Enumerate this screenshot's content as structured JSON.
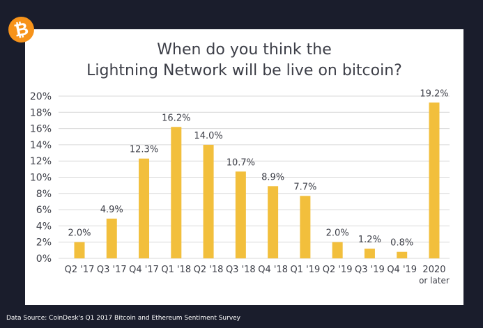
{
  "brand": {
    "logo_glyph": "₿",
    "logo_color": "#f7931a"
  },
  "colors": {
    "background": "#1a1d2c",
    "card": "#ffffff",
    "bar": "#f2bf3c",
    "text": "#3c3e47",
    "grid": "#d9d9d9"
  },
  "source_text": "Data Source: CoinDesk's Q1 2017 Bitcoin and Ethereum Sentiment Survey",
  "chart_data": {
    "type": "bar",
    "title": "When do you think the Lightning Network will be live on bitcoin?",
    "title_lines": [
      "When do you think the",
      "Lightning Network will be live on bitcoin?"
    ],
    "xlabel": "",
    "ylabel": "",
    "ylim": [
      0,
      20
    ],
    "yticks": [
      0,
      2,
      4,
      6,
      8,
      10,
      12,
      14,
      16,
      18,
      20
    ],
    "ytick_labels": [
      "0%",
      "2%",
      "4%",
      "6%",
      "8%",
      "10%",
      "12%",
      "14%",
      "16%",
      "18%",
      "20%"
    ],
    "grid": true,
    "categories": [
      "Q2 '17",
      "Q3 '17",
      "Q4 '17",
      "Q1 '18",
      "Q2 '18",
      "Q3 '18",
      "Q4 '18",
      "Q1 '19",
      "Q2 '19",
      "Q3 '19",
      "Q4 '19",
      "2020\nor later"
    ],
    "values": [
      2.0,
      4.9,
      12.3,
      16.2,
      14.0,
      10.7,
      8.9,
      7.7,
      2.0,
      1.2,
      0.8,
      19.2
    ],
    "data_labels": [
      "2.0%",
      "4.9%",
      "12.3%",
      "16.2%",
      "14.0%",
      "10.7%",
      "8.9%",
      "7.7%",
      "2.0%",
      "1.2%",
      "0.8%",
      "19.2%"
    ]
  }
}
